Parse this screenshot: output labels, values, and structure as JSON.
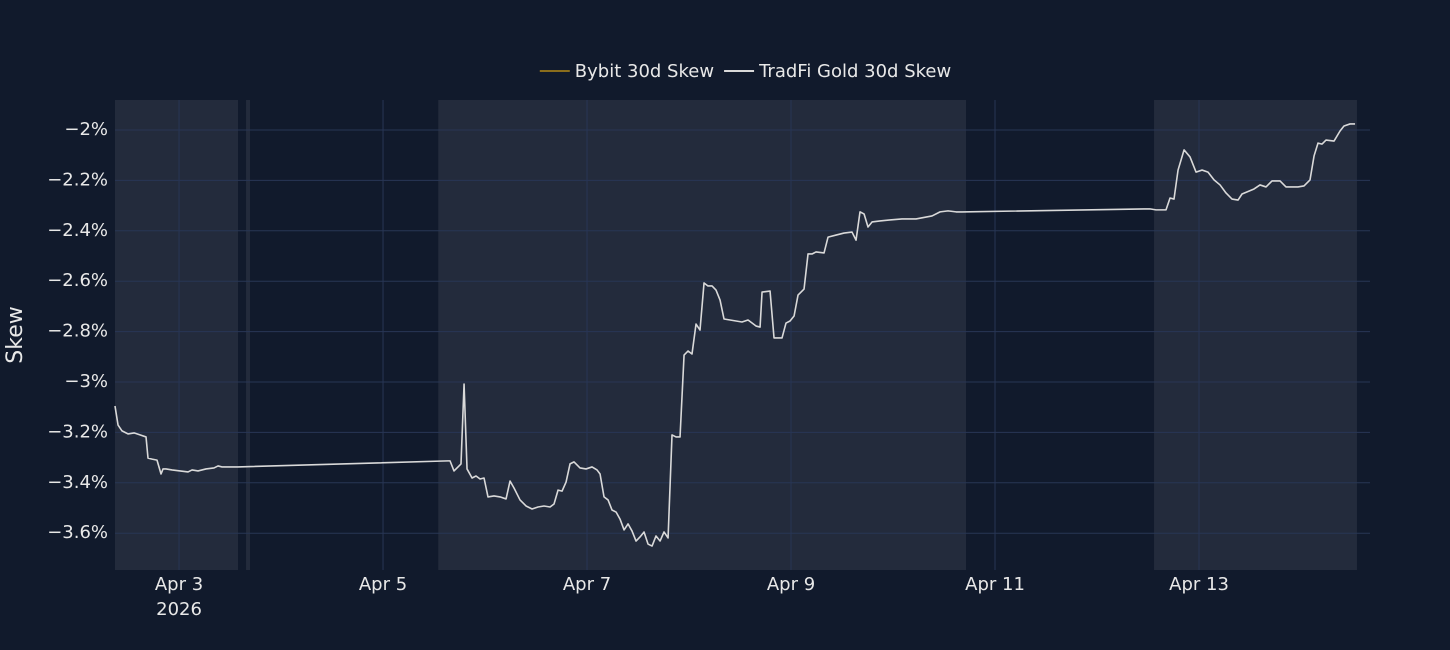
{
  "chart_data": {
    "type": "line",
    "y_title": "Skew",
    "x_year_label": "2026",
    "xlim": [
      "2026-04-02 08:56",
      "2026-04-14 16:14"
    ],
    "ylim": [
      -3.746,
      -1.881
    ],
    "xticks": [
      {
        "value": "2026-04-03",
        "label": "Apr 3"
      },
      {
        "value": "2026-04-05",
        "label": "Apr 5"
      },
      {
        "value": "2026-04-07",
        "label": "Apr 7"
      },
      {
        "value": "2026-04-09",
        "label": "Apr 9"
      },
      {
        "value": "2026-04-11",
        "label": "Apr 11"
      },
      {
        "value": "2026-04-13",
        "label": "Apr 13"
      }
    ],
    "yticks": [
      {
        "value": -2,
        "label": "−2%"
      },
      {
        "value": -2.2,
        "label": "−2.2%"
      },
      {
        "value": -2.4,
        "label": "−2.4%"
      },
      {
        "value": -2.6,
        "label": "−2.6%"
      },
      {
        "value": -2.8,
        "label": "−2.8%"
      },
      {
        "value": -3,
        "label": "−3%"
      },
      {
        "value": -3.2,
        "label": "−3.2%"
      },
      {
        "value": -3.4,
        "label": "−3.4%"
      },
      {
        "value": -3.6,
        "label": "−3.6%"
      }
    ],
    "grid": true,
    "legend_position": "top",
    "shaded_ranges": [
      [
        "2026-04-02 08:56",
        "2026-04-03 13:53"
      ],
      [
        "2026-04-03 15:46",
        "2026-04-03 16:42"
      ],
      [
        "2026-04-05 13:00",
        "2026-04-10 17:11"
      ],
      [
        "2026-04-12 13:25",
        "2026-04-14 13:10"
      ]
    ],
    "x": [
      "2026-04-02 08:56",
      "2026-04-02 09:39",
      "2026-04-02 10:35",
      "2026-04-02 12:00",
      "2026-04-02 13:25",
      "2026-04-02 14:49",
      "2026-04-02 16:14",
      "2026-04-02 16:42",
      "2026-04-02 17:39",
      "2026-04-02 18:49",
      "2026-04-02 19:46",
      "2026-04-02 20:14",
      "2026-04-02 20:56",
      "2026-04-02 22:21",
      "2026-04-03 00:14",
      "2026-04-03 02:07",
      "2026-04-03 03:04",
      "2026-04-03 04:28",
      "2026-04-03 06:21",
      "2026-04-03 08:14",
      "2026-04-03 09:11",
      "2026-04-03 10:07",
      "2026-04-03 13:53",
      "2026-04-05 15:18",
      "2026-04-05 15:46",
      "2026-04-05 16:42",
      "2026-04-05 17:39",
      "2026-04-05 18:21",
      "2026-04-05 19:04",
      "2026-04-05 19:46",
      "2026-04-05 20:57",
      "2026-04-05 21:53",
      "2026-04-05 22:50",
      "2026-04-05 23:46",
      "2026-04-06 00:42",
      "2026-04-06 02:07",
      "2026-04-06 03:32",
      "2026-04-06 04:57",
      "2026-04-06 05:53",
      "2026-04-06 06:50",
      "2026-04-06 08:14",
      "2026-04-06 09:39",
      "2026-04-06 11:04",
      "2026-04-06 12:28",
      "2026-04-06 13:53",
      "2026-04-06 15:18",
      "2026-04-06 16:14",
      "2026-04-06 17:11",
      "2026-04-06 18:07",
      "2026-04-06 19:04",
      "2026-04-06 20:00",
      "2026-04-06 20:57",
      "2026-04-06 22:21",
      "2026-04-06 23:46",
      "2026-04-07 01:11",
      "2026-04-07 02:21",
      "2026-04-07 03:04",
      "2026-04-07 04:00",
      "2026-04-07 04:57",
      "2026-04-07 05:53",
      "2026-04-07 06:50",
      "2026-04-07 07:46",
      "2026-04-07 08:43",
      "2026-04-07 09:39",
      "2026-04-07 10:35",
      "2026-04-07 11:32",
      "2026-04-07 12:28",
      "2026-04-07 13:25",
      "2026-04-07 14:21",
      "2026-04-07 15:18",
      "2026-04-07 16:14",
      "2026-04-07 17:11",
      "2026-04-07 18:07",
      "2026-04-07 19:04",
      "2026-04-07 20:00",
      "2026-04-07 20:57",
      "2026-04-07 21:53",
      "2026-04-07 22:50",
      "2026-04-07 23:46",
      "2026-04-08 00:42",
      "2026-04-08 01:39",
      "2026-04-08 02:35",
      "2026-04-08 03:32",
      "2026-04-08 04:28",
      "2026-04-08 05:25",
      "2026-04-08 06:21",
      "2026-04-08 07:18",
      "2026-04-08 08:14",
      "2026-04-08 09:39",
      "2026-04-08 11:04",
      "2026-04-08 12:28",
      "2026-04-08 13:53",
      "2026-04-08 14:50",
      "2026-04-08 15:46",
      "2026-04-08 16:43",
      "2026-04-08 17:11",
      "2026-04-08 19:04",
      "2026-04-08 20:00",
      "2026-04-08 21:53",
      "2026-04-08 22:49",
      "2026-04-08 23:46",
      "2026-04-09 00:43",
      "2026-04-09 01:39",
      "2026-04-09 03:04",
      "2026-04-09 04:00",
      "2026-04-09 04:57",
      "2026-04-09 05:53",
      "2026-04-09 07:46",
      "2026-04-09 08:43",
      "2026-04-09 10:36",
      "2026-04-09 12:28",
      "2026-04-09 14:21",
      "2026-04-09 15:18",
      "2026-04-09 16:14",
      "2026-04-09 17:11",
      "2026-04-09 18:07",
      "2026-04-09 19:04",
      "2026-04-09 20:57",
      "2026-04-09 23:18",
      "2026-04-10 02:07",
      "2026-04-10 05:25",
      "2026-04-10 09:11",
      "2026-04-10 11:04",
      "2026-04-10 12:57",
      "2026-04-10 14:50",
      "2026-04-10 16:15",
      "2026-04-12 12:28",
      "2026-04-12 13:53",
      "2026-04-12 16:14",
      "2026-04-12 17:11",
      "2026-04-12 18:07",
      "2026-04-12 19:04",
      "2026-04-12 20:29",
      "2026-04-12 21:53",
      "2026-04-12 23:18",
      "2026-04-13 00:43",
      "2026-04-13 02:07",
      "2026-04-13 03:32",
      "2026-04-13 04:57",
      "2026-04-13 06:21",
      "2026-04-13 07:46",
      "2026-04-13 09:11",
      "2026-04-13 10:07",
      "2026-04-13 12:57",
      "2026-04-13 14:21",
      "2026-04-13 15:46",
      "2026-04-13 17:11",
      "2026-04-13 19:04",
      "2026-04-13 20:28",
      "2026-04-13 23:17",
      "2026-04-14 00:42",
      "2026-04-14 02:07",
      "2026-04-14 03:04",
      "2026-04-14 04:00",
      "2026-04-14 04:57",
      "2026-04-14 05:53",
      "2026-04-14 07:46",
      "2026-04-14 09:11",
      "2026-04-14 10:07",
      "2026-04-14 11:32",
      "2026-04-14 12:43"
    ],
    "series": [
      {
        "name": "Bybit 30d Skew",
        "color": "#8a6d1c",
        "visible": "legendonly"
      },
      {
        "name": "TradFi Gold 30d Skew",
        "color": "#d9d9d9",
        "values": [
          -3.095,
          -3.171,
          -3.194,
          -3.206,
          -3.202,
          -3.21,
          -3.218,
          -3.302,
          -3.306,
          -3.31,
          -3.365,
          -3.345,
          -3.345,
          -3.349,
          -3.353,
          -3.357,
          -3.349,
          -3.353,
          -3.345,
          -3.341,
          -3.333,
          -3.337,
          -3.337,
          -3.313,
          -3.313,
          -3.353,
          -3.337,
          -3.325,
          -3.008,
          -3.345,
          -3.381,
          -3.373,
          -3.385,
          -3.381,
          -3.456,
          -3.452,
          -3.456,
          -3.464,
          -3.393,
          -3.421,
          -3.468,
          -3.492,
          -3.504,
          -3.496,
          -3.492,
          -3.496,
          -3.484,
          -3.429,
          -3.433,
          -3.397,
          -3.325,
          -3.317,
          -3.341,
          -3.345,
          -3.337,
          -3.349,
          -3.365,
          -3.456,
          -3.468,
          -3.508,
          -3.516,
          -3.544,
          -3.587,
          -3.563,
          -3.591,
          -3.631,
          -3.615,
          -3.595,
          -3.643,
          -3.651,
          -3.611,
          -3.631,
          -3.595,
          -3.619,
          -3.21,
          -3.218,
          -3.218,
          -2.893,
          -2.877,
          -2.889,
          -2.77,
          -2.794,
          -2.607,
          -2.619,
          -2.619,
          -2.635,
          -2.675,
          -2.75,
          -2.754,
          -2.758,
          -2.762,
          -2.754,
          -2.766,
          -2.778,
          -2.782,
          -2.643,
          -2.639,
          -2.825,
          -2.825,
          -2.766,
          -2.758,
          -2.738,
          -2.655,
          -2.631,
          -2.492,
          -2.492,
          -2.484,
          -2.488,
          -2.425,
          -2.417,
          -2.409,
          -2.405,
          -2.437,
          -2.325,
          -2.333,
          -2.385,
          -2.365,
          -2.361,
          -2.357,
          -2.353,
          -2.353,
          -2.341,
          -2.325,
          -2.321,
          -2.325,
          -2.325,
          -2.313,
          -2.317,
          -2.317,
          -2.27,
          -2.274,
          -2.159,
          -2.079,
          -2.107,
          -2.167,
          -2.159,
          -2.167,
          -2.198,
          -2.218,
          -2.25,
          -2.274,
          -2.278,
          -2.254,
          -2.234,
          -2.218,
          -2.226,
          -2.202,
          -2.202,
          -2.226,
          -2.226,
          -2.222,
          -2.198,
          -2.103,
          -2.052,
          -2.056,
          -2.04,
          -2.044,
          -2.004,
          -1.984,
          -1.976,
          -1.976
        ]
      }
    ]
  }
}
